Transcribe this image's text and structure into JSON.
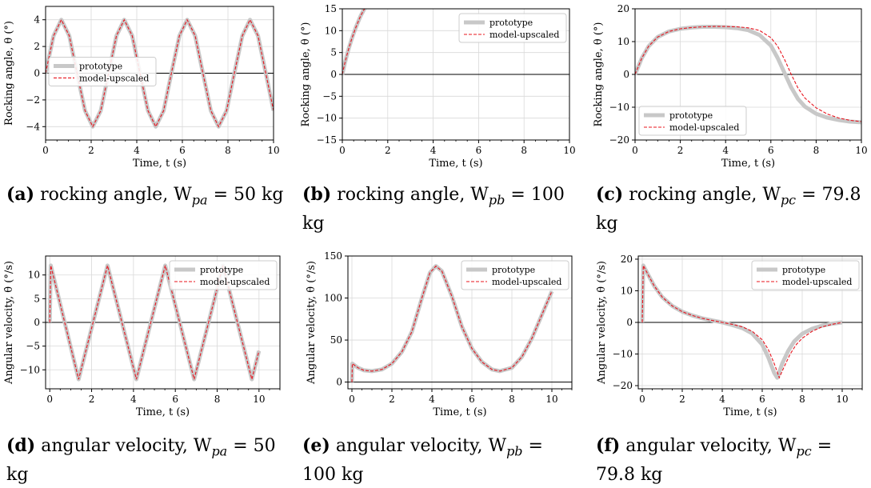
{
  "colors": {
    "prototype": "#c8c8c8",
    "model": "#e8141e",
    "grid": "#d9d9d9"
  },
  "captions": [
    {
      "tag": "(a)",
      "text": "rocking angle, W",
      "sub": "pa",
      "rest": " = 50 kg"
    },
    {
      "tag": "(b)",
      "text": "rocking angle, W",
      "sub": "pb",
      "rest": " = 100 kg"
    },
    {
      "tag": "(c)",
      "text": "rocking angle, W",
      "sub": "pc",
      "rest": " = 79.8 kg"
    },
    {
      "tag": "(d)",
      "text": "angular velocity, W",
      "sub": "pa",
      "rest": " = 50 kg"
    },
    {
      "tag": "(e)",
      "text": "angular velocity, W",
      "sub": "pb",
      "rest": " = 100 kg"
    },
    {
      "tag": "(f)",
      "text": "angular velocity, W",
      "sub": "pc",
      "rest": " = 79.8 kg"
    }
  ],
  "chart_data": [
    {
      "id": "a",
      "type": "line",
      "xlabel": "Time, t (s)",
      "ylabel": "Rocking angle, θ (°)",
      "xlim": [
        0,
        10
      ],
      "ylim": [
        -5,
        5
      ],
      "xticks": [
        0,
        2,
        4,
        6,
        8,
        10
      ],
      "yticks": [
        -4,
        -2,
        0,
        2,
        4
      ],
      "legend": "center-left",
      "series": [
        {
          "name": "prototype",
          "x": [
            0,
            0.35,
            0.69,
            1.04,
            1.38,
            1.73,
            2.07,
            2.42,
            2.76,
            3.11,
            3.45,
            3.8,
            4.14,
            4.49,
            4.83,
            5.18,
            5.52,
            5.87,
            6.21,
            6.56,
            6.9,
            7.25,
            7.59,
            7.94,
            8.28,
            8.63,
            8.97,
            9.32,
            9.66,
            10
          ],
          "y": [
            0,
            2.8,
            4,
            2.8,
            0,
            -2.8,
            -4,
            -2.8,
            0,
            2.8,
            4,
            2.8,
            0,
            -2.8,
            -4,
            -2.8,
            0,
            2.8,
            4,
            2.8,
            0,
            -2.8,
            -4,
            -2.8,
            0,
            2.8,
            4,
            2.8,
            0,
            -2.8
          ]
        },
        {
          "name": "model-upscaled",
          "x": [
            0,
            0.35,
            0.69,
            1.04,
            1.38,
            1.73,
            2.07,
            2.42,
            2.76,
            3.11,
            3.45,
            3.8,
            4.14,
            4.49,
            4.83,
            5.18,
            5.52,
            5.87,
            6.21,
            6.56,
            6.9,
            7.25,
            7.59,
            7.94,
            8.28,
            8.63,
            8.97,
            9.32,
            9.66,
            10
          ],
          "y": [
            0,
            2.8,
            4,
            2.8,
            0,
            -2.8,
            -4,
            -2.8,
            0,
            2.8,
            4,
            2.8,
            0,
            -2.8,
            -4,
            -2.8,
            0,
            2.8,
            4,
            2.8,
            0,
            -2.8,
            -4,
            -2.8,
            0,
            2.8,
            4,
            2.8,
            0,
            -2.8
          ]
        }
      ]
    },
    {
      "id": "b",
      "type": "line",
      "xlabel": "Time, t (s)",
      "ylabel": "Rocking angle, θ (°)",
      "xlim": [
        0,
        10
      ],
      "ylim": [
        -15,
        15
      ],
      "xticks": [
        0,
        2,
        4,
        6,
        8,
        10
      ],
      "yticks": [
        -15,
        -10,
        -5,
        0,
        5,
        10,
        15
      ],
      "legend": "top-right",
      "series": [
        {
          "name": "prototype",
          "x": [
            0,
            0.1,
            0.2,
            0.3,
            0.4,
            0.5,
            0.6,
            0.7,
            0.8,
            0.9,
            1.0
          ],
          "y": [
            0,
            2.3,
            4.4,
            6.2,
            7.9,
            9.4,
            10.8,
            12.1,
            13.3,
            14.3,
            15.2
          ]
        },
        {
          "name": "model-upscaled",
          "x": [
            0,
            0.1,
            0.2,
            0.3,
            0.4,
            0.5,
            0.6,
            0.7,
            0.8,
            0.9,
            1.0
          ],
          "y": [
            0,
            2.3,
            4.4,
            6.2,
            7.9,
            9.4,
            10.8,
            12.1,
            13.3,
            14.3,
            15.2
          ]
        }
      ]
    },
    {
      "id": "c",
      "type": "line",
      "xlabel": "Time, t (s)",
      "ylabel": "Rocking angle, θ (°)",
      "xlim": [
        0,
        10
      ],
      "ylim": [
        -20,
        20
      ],
      "xticks": [
        0,
        2,
        4,
        6,
        8,
        10
      ],
      "yticks": [
        -20,
        -10,
        0,
        10,
        20
      ],
      "legend": "lower-left",
      "series": [
        {
          "name": "prototype",
          "x": [
            0,
            0.3,
            0.6,
            1,
            1.5,
            2,
            2.5,
            3,
            3.5,
            4,
            4.5,
            5,
            5.5,
            6,
            6.3,
            6.6,
            6.9,
            7.2,
            7.5,
            8,
            8.5,
            9,
            9.5,
            10
          ],
          "y": [
            0,
            5,
            8.6,
            11.4,
            13.1,
            13.9,
            14.3,
            14.5,
            14.5,
            14.4,
            14.1,
            13.5,
            12,
            8.8,
            5,
            0.5,
            -4,
            -7.5,
            -9.8,
            -12,
            -13.2,
            -13.9,
            -14.4,
            -14.6
          ]
        },
        {
          "name": "model-upscaled",
          "x": [
            0,
            0.3,
            0.6,
            1,
            1.5,
            2,
            2.5,
            3,
            3.5,
            4,
            4.5,
            5,
            5.5,
            6,
            6.3,
            6.6,
            6.9,
            7.2,
            7.5,
            8,
            8.5,
            9,
            9.5,
            10
          ],
          "y": [
            0,
            5,
            8.6,
            11.4,
            13.1,
            13.9,
            14.3,
            14.5,
            14.6,
            14.6,
            14.5,
            14.2,
            13.4,
            11.2,
            8.6,
            4.6,
            0,
            -4.2,
            -7.2,
            -10.2,
            -12.1,
            -13.3,
            -14,
            -14.4
          ]
        }
      ]
    },
    {
      "id": "d",
      "type": "line",
      "xlabel": "Time, t (s)",
      "ylabel": "Angular velocity, θ̇ (°/s)",
      "xlim": [
        -0.2,
        11
      ],
      "ylim": [
        -14,
        14
      ],
      "xticks": [
        0,
        2,
        4,
        6,
        8,
        10
      ],
      "yticks": [
        -10,
        -5,
        0,
        5,
        10
      ],
      "legend": "top-right",
      "series": [
        {
          "name": "prototype",
          "x": [
            0,
            0.05,
            1.38,
            2.76,
            4.14,
            5.52,
            6.9,
            8.28,
            9.66,
            10
          ],
          "y": [
            0,
            12,
            -12,
            12,
            -12,
            12,
            -12,
            12,
            -12,
            -6
          ]
        },
        {
          "name": "model-upscaled",
          "x": [
            0,
            0.05,
            1.38,
            2.76,
            4.14,
            5.52,
            6.9,
            8.28,
            9.66,
            10
          ],
          "y": [
            0,
            12,
            -12,
            12,
            -12,
            12,
            -12,
            12,
            -12,
            -6
          ]
        }
      ]
    },
    {
      "id": "e",
      "type": "line",
      "xlabel": "Time, t (s)",
      "ylabel": "Angular velocity, θ̇ (°/s)",
      "xlim": [
        -0.2,
        11
      ],
      "ylim": [
        -8,
        150
      ],
      "xticks": [
        0,
        2,
        4,
        6,
        8,
        10
      ],
      "yticks": [
        0,
        50,
        100,
        150
      ],
      "legend": "top-right",
      "series": [
        {
          "name": "prototype",
          "x": [
            0,
            0.02,
            0.3,
            0.6,
            1,
            1.5,
            2,
            2.5,
            3,
            3.5,
            3.9,
            4.2,
            4.5,
            5,
            5.5,
            6,
            6.5,
            7,
            7.4,
            8,
            8.5,
            9,
            9.5,
            10
          ],
          "y": [
            0,
            22,
            17,
            14,
            13,
            15,
            22,
            36,
            60,
            100,
            130,
            138,
            132,
            102,
            66,
            40,
            24,
            15,
            13,
            17,
            30,
            52,
            80,
            108
          ]
        },
        {
          "name": "model-upscaled",
          "x": [
            0,
            0.02,
            0.3,
            0.6,
            1,
            1.5,
            2,
            2.5,
            3,
            3.5,
            3.9,
            4.2,
            4.5,
            5,
            5.5,
            6,
            6.5,
            7,
            7.4,
            8,
            8.5,
            9,
            9.5,
            10
          ],
          "y": [
            0,
            22,
            17,
            14,
            13,
            15,
            22,
            36,
            60,
            100,
            130,
            138,
            132,
            102,
            66,
            40,
            24,
            15,
            13,
            17,
            30,
            52,
            80,
            108
          ]
        }
      ]
    },
    {
      "id": "f",
      "type": "line",
      "xlabel": "Time, t (s)",
      "ylabel": "Angular velocity, θ̇ (°/s)",
      "xlim": [
        -0.2,
        11
      ],
      "ylim": [
        -21,
        21
      ],
      "xticks": [
        0,
        2,
        4,
        6,
        8,
        10
      ],
      "yticks": [
        -20,
        -10,
        0,
        10,
        20
      ],
      "legend": "top-right",
      "series": [
        {
          "name": "prototype",
          "x": [
            0,
            0.05,
            0.3,
            0.6,
            1,
            1.5,
            2,
            2.5,
            3,
            3.5,
            4,
            4.5,
            5,
            5.5,
            6,
            6.3,
            6.6,
            6.75,
            7,
            7.3,
            7.6,
            8,
            8.5,
            9,
            9.5,
            10
          ],
          "y": [
            0,
            18,
            15,
            11.5,
            8,
            5.2,
            3.4,
            2.2,
            1.3,
            0.6,
            0,
            -0.8,
            -1.8,
            -3.5,
            -7,
            -11,
            -16,
            -17.5,
            -13,
            -9,
            -6,
            -3.6,
            -2,
            -1,
            -0.4,
            0
          ]
        },
        {
          "name": "model-upscaled",
          "x": [
            0,
            0.05,
            0.3,
            0.6,
            1,
            1.5,
            2,
            2.5,
            3,
            3.5,
            4,
            4.5,
            5,
            5.5,
            6,
            6.3,
            6.6,
            6.85,
            7.1,
            7.4,
            7.7,
            8,
            8.5,
            9,
            9.5,
            10
          ],
          "y": [
            0,
            18,
            15,
            11.5,
            8,
            5.2,
            3.4,
            2.2,
            1.3,
            0.6,
            0,
            -0.6,
            -1.4,
            -2.8,
            -5.5,
            -8.5,
            -13,
            -17.5,
            -14,
            -10,
            -7,
            -5,
            -2.8,
            -1.4,
            -0.6,
            0
          ]
        }
      ]
    }
  ]
}
